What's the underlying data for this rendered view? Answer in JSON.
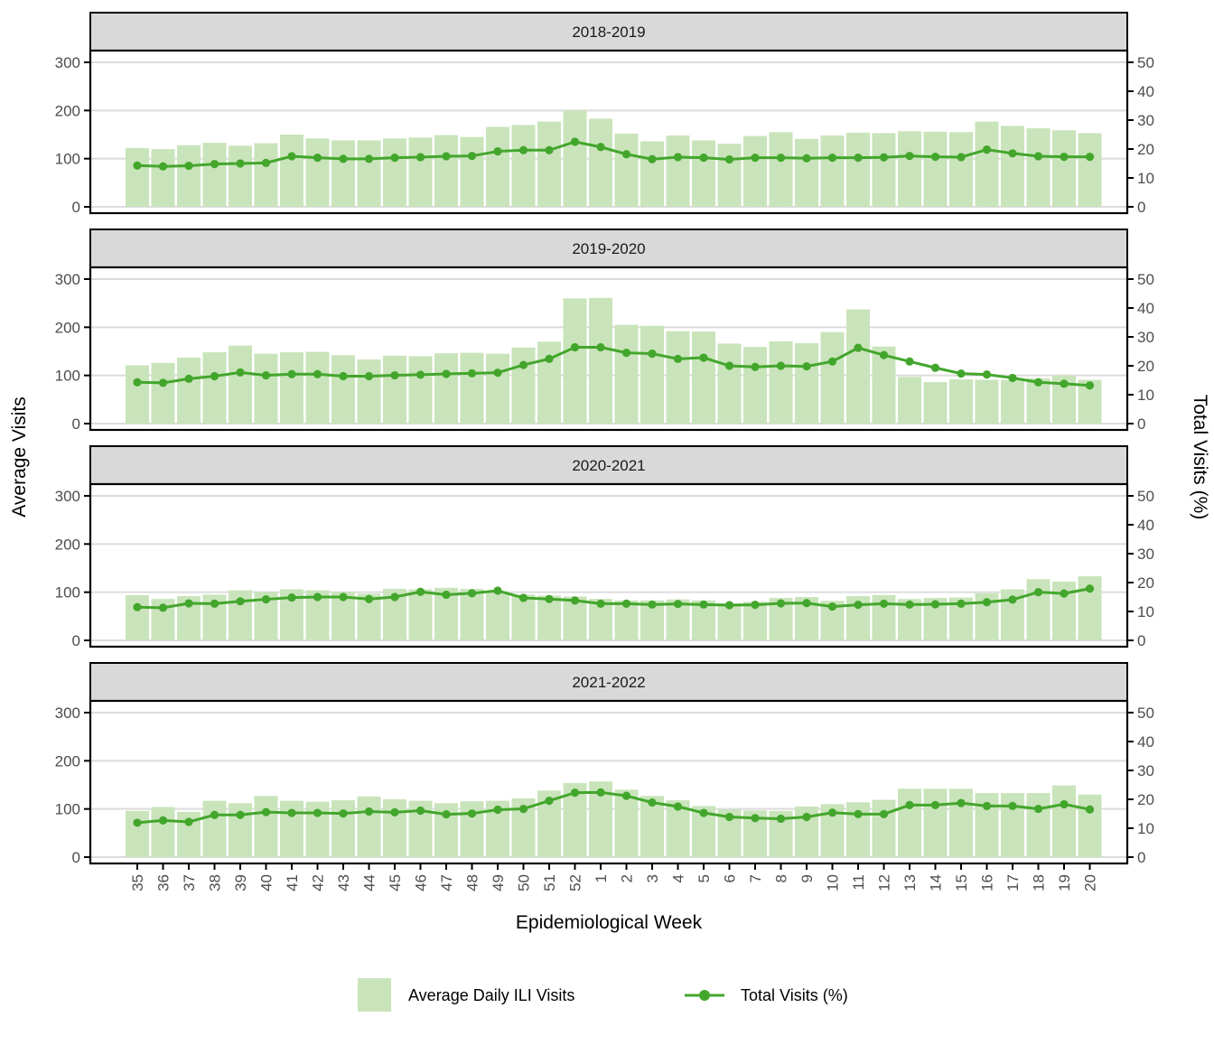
{
  "figure": {
    "x_axis_title": "Epidemiological Week",
    "left_axis_title": "Average Visits",
    "right_axis_title": "Total Visits (%)",
    "legend": {
      "bar_label": "Average Daily ILI Visits",
      "line_label": "Total Visits (%)"
    },
    "colors": {
      "bar_fill": "#c9e4ba",
      "line": "#43a62c",
      "strip_bg": "#d9d9d9",
      "gridline": "#dcdcdc",
      "axis_text": "#4d4d4d",
      "border": "#000000",
      "panel_bg": "#ffffff"
    }
  },
  "chart_data": {
    "type": "bar",
    "subtype": "faceted bar + line combo, dual y-axes",
    "categories": [
      "35",
      "36",
      "37",
      "38",
      "39",
      "40",
      "41",
      "42",
      "43",
      "44",
      "45",
      "46",
      "47",
      "48",
      "49",
      "50",
      "51",
      "52",
      "1",
      "2",
      "3",
      "4",
      "5",
      "6",
      "7",
      "8",
      "9",
      "10",
      "11",
      "12",
      "13",
      "14",
      "15",
      "16",
      "17",
      "18",
      "19",
      "20"
    ],
    "xlabel": "Epidemiological Week",
    "left_axis": {
      "label": "Average Visits",
      "ticks": [
        0,
        100,
        200,
        300
      ],
      "range": [
        0,
        300
      ],
      "grid": true
    },
    "right_axis": {
      "label": "Total Visits (%)",
      "ticks": [
        0,
        10,
        20,
        30,
        40,
        50
      ],
      "range": [
        0,
        50
      ]
    },
    "legend_position": "bottom",
    "panels": [
      {
        "title": "2018-2019",
        "series": [
          {
            "name": "Average Daily ILI Visits",
            "type": "bar",
            "values": [
              122,
              120,
              128,
              133,
              127,
              132,
              150,
              142,
              138,
              138,
              142,
              144,
              149,
              145,
              166,
              170,
              177,
              200,
              183,
              152,
              136,
              148,
              138,
              131,
              147,
              155,
              141,
              148,
              154,
              153,
              157,
              156,
              155,
              177,
              168,
              163,
              159,
              153
            ]
          },
          {
            "name": "Total Visits (%)",
            "type": "line",
            "values": [
              14.3,
              14.0,
              14.2,
              14.8,
              15.0,
              15.2,
              17.5,
              17.0,
              16.6,
              16.6,
              17.0,
              17.2,
              17.5,
              17.6,
              19.2,
              19.6,
              19.6,
              22.5,
              20.7,
              18.2,
              16.5,
              17.2,
              17.0,
              16.4,
              17.0,
              17.0,
              16.8,
              17.0,
              17.0,
              17.1,
              17.6,
              17.3,
              17.2,
              19.8,
              18.5,
              17.5,
              17.3,
              17.3
            ]
          }
        ]
      },
      {
        "title": "2019-2020",
        "series": [
          {
            "name": "Average Daily ILI Visits",
            "type": "bar",
            "values": [
              121,
              126,
              137,
              148,
              162,
              145,
              148,
              149,
              142,
              133,
              141,
              140,
              146,
              147,
              145,
              158,
              170,
              260,
              261,
              205,
              203,
              192,
              191,
              166,
              159,
              171,
              167,
              190,
              237,
              160,
              97,
              86,
              92,
              91,
              91,
              94,
              100,
              91
            ]
          },
          {
            "name": "Total Visits (%)",
            "type": "line",
            "values": [
              14.3,
              14.1,
              15.5,
              16.4,
              17.7,
              16.7,
              17.1,
              17.1,
              16.4,
              16.4,
              16.7,
              16.9,
              17.2,
              17.4,
              17.6,
              20.3,
              22.4,
              26.4,
              26.4,
              24.5,
              24.2,
              22.4,
              22.8,
              20.0,
              19.6,
              20.0,
              19.8,
              21.5,
              26.2,
              23.7,
              21.5,
              19.3,
              17.3,
              17.0,
              15.8,
              14.3,
              13.8,
              13.2
            ]
          }
        ]
      },
      {
        "title": "2020-2021",
        "series": [
          {
            "name": "Average Daily ILI Visits",
            "type": "bar",
            "values": [
              94,
              86,
              92,
              95,
              104,
              101,
              106,
              104,
              101,
              97,
              107,
              106,
              109,
              107,
              101,
              95,
              93,
              91,
              86,
              83,
              83,
              85,
              83,
              77,
              80,
              88,
              90,
              82,
              92,
              94,
              86,
              88,
              89,
              98,
              106,
              127,
              122,
              133
            ]
          },
          {
            "name": "Total Visits (%)",
            "type": "line",
            "values": [
              11.5,
              11.3,
              12.8,
              12.7,
              13.5,
              14.2,
              14.8,
              15.0,
              15.0,
              14.3,
              15.0,
              16.8,
              15.8,
              16.3,
              17.2,
              14.7,
              14.3,
              13.8,
              12.7,
              12.7,
              12.4,
              12.6,
              12.4,
              12.2,
              12.3,
              12.8,
              12.9,
              11.7,
              12.3,
              12.7,
              12.4,
              12.5,
              12.7,
              13.2,
              14.1,
              16.7,
              16.2,
              17.9
            ]
          }
        ]
      },
      {
        "title": "2021-2022",
        "series": [
          {
            "name": "Average Daily ILI Visits",
            "type": "bar",
            "values": [
              96,
              104,
              94,
              117,
              112,
              127,
              117,
              115,
              118,
              126,
              120,
              117,
              112,
              116,
              117,
              122,
              138,
              154,
              157,
              140,
              127,
              118,
              106,
              99,
              97,
              96,
              105,
              110,
              114,
              119,
              142,
              142,
              142,
              133,
              133,
              133,
              149,
              130
            ]
          },
          {
            "name": "Total Visits (%)",
            "type": "line",
            "values": [
              11.9,
              12.7,
              12.2,
              14.6,
              14.6,
              15.6,
              15.3,
              15.3,
              15.1,
              15.8,
              15.5,
              16.1,
              14.8,
              15.1,
              16.4,
              16.7,
              19.5,
              22.3,
              22.4,
              21.2,
              18.9,
              17.5,
              15.3,
              13.9,
              13.5,
              13.3,
              13.9,
              15.4,
              14.9,
              14.9,
              18.0,
              18.0,
              18.7,
              17.7,
              17.7,
              16.7,
              18.3,
              16.5
            ]
          }
        ]
      }
    ]
  }
}
